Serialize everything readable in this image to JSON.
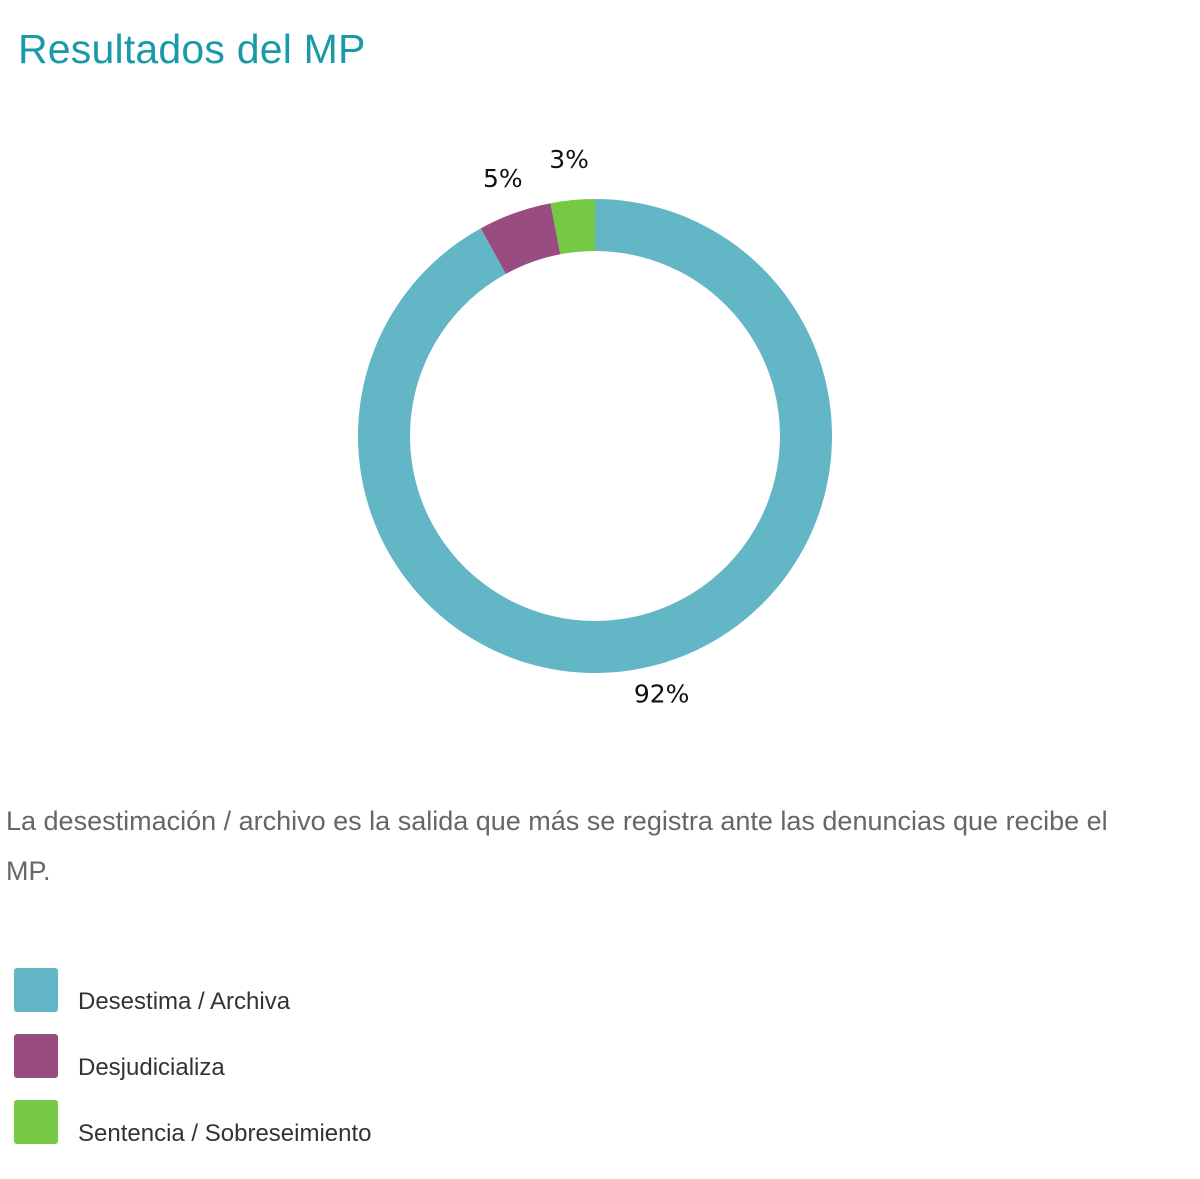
{
  "header": {
    "title": "Resultados del MP"
  },
  "description": "La desestimación / archivo es la salida que más se registra ante las denuncias que recibe el MP.",
  "chart_data": {
    "type": "pie",
    "variant": "donut",
    "title": "Resultados del MP",
    "legend_position": "bottom-left",
    "slices": [
      {
        "name": "Desestima / Archiva",
        "value": 92,
        "label": "92%",
        "color": "#63b6c6"
      },
      {
        "name": "Desjudicializa",
        "value": 5,
        "label": "5%",
        "color": "#984c80"
      },
      {
        "name": "Sentencia / Sobreseimiento",
        "value": 3,
        "label": "3%",
        "color": "#77c843"
      }
    ]
  }
}
